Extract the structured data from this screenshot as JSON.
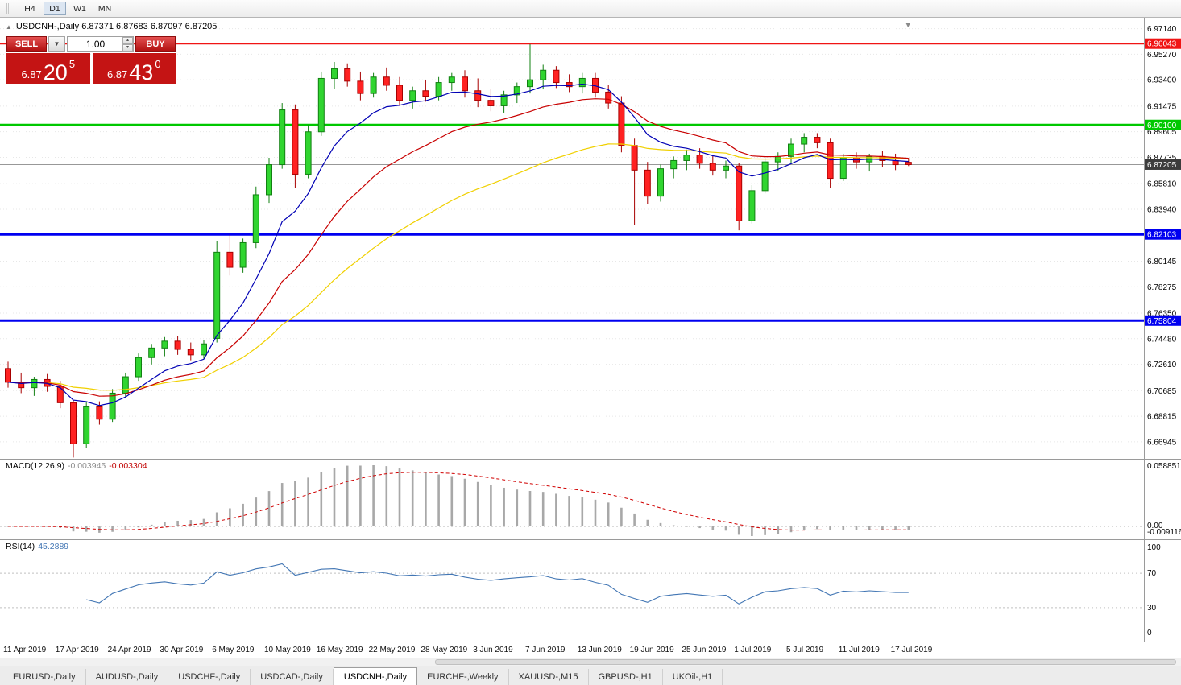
{
  "toolbar": {
    "timeframes": [
      {
        "label": "H4",
        "active": false
      },
      {
        "label": "D1",
        "active": true
      },
      {
        "label": "W1",
        "active": false
      },
      {
        "label": "MN",
        "active": false
      }
    ]
  },
  "chart": {
    "symbol": "USDCNH-",
    "period": "Daily",
    "title": "USDCNH-,Daily 6.87371 6.87683 6.87097 6.87205",
    "open": "6.87371",
    "high": "6.87683",
    "low": "6.87097",
    "close": "6.87205"
  },
  "icons": {
    "collapse": "▲",
    "autoscroll": "▼",
    "dropdown": "▼",
    "spin_up": "▴",
    "spin_down": "▾"
  },
  "trade_panel": {
    "sell_label": "SELL",
    "buy_label": "BUY",
    "volume": "1.00",
    "sell_price": {
      "prefix": "6.87",
      "big": "20",
      "sup": "5"
    },
    "buy_price": {
      "prefix": "6.87",
      "big": "43",
      "sup": "0"
    }
  },
  "price_axis": {
    "gridlines": [
      "6.97140",
      "6.95270",
      "6.93400",
      "6.91475",
      "6.89605",
      "6.87735",
      "6.85810",
      "6.83940",
      "6.80145",
      "6.78275",
      "6.76350",
      "6.74480",
      "6.72610",
      "6.70685",
      "6.68815",
      "6.66945"
    ],
    "current": {
      "price": 6.87205,
      "label": "6.87205"
    }
  },
  "macd": {
    "label": "MACD(12,26,9)",
    "main_value": "-0.003945",
    "signal_value": "-0.003304",
    "axis_max": "0.058851",
    "axis_zero": "0.00",
    "axis_min": "-0.009116",
    "fast": 12,
    "slow": 26,
    "smoothing": 9
  },
  "rsi": {
    "label": "RSI(14)",
    "value": "45.2889",
    "period": 14,
    "levels": [
      70,
      30
    ],
    "axis": [
      "100",
      "70",
      "30",
      "0"
    ]
  },
  "date_axis": {
    "step": 4
  },
  "tabs": [
    {
      "label": "EURUSD-,Daily",
      "active": false
    },
    {
      "label": "AUDUSD-,Daily",
      "active": false
    },
    {
      "label": "USDCHF-,Daily",
      "active": false
    },
    {
      "label": "USDCAD-,Daily",
      "active": false
    },
    {
      "label": "USDCNH-,Daily",
      "active": true
    },
    {
      "label": "EURCHF-,Weekly",
      "active": false
    },
    {
      "label": "XAUUSD-,M15",
      "active": false
    },
    {
      "label": "GBPUSD-,H1",
      "active": false
    },
    {
      "label": "UKOil-,H1",
      "active": false
    }
  ],
  "colors": {
    "bull": "#30d530",
    "bull_border": "#128012",
    "bear": "#ff2222",
    "bear_border": "#a80000",
    "ma_fast": "#0000b4",
    "ma_mid": "#c80000",
    "ma_slow": "#f0d000",
    "current_price_line": "#989898",
    "current_price_label_bg": "#3c3c3c",
    "macd_hist": "#a8a8a8",
    "macd_signal": "#d00000",
    "rsi_line": "#4276b4",
    "grid": "#e7e7e7",
    "separator": "#9a9a9a"
  },
  "chart_data": {
    "type": "candlestick",
    "symbol": "USDCNH-",
    "timeframe": "Daily",
    "hlines": [
      {
        "price": 6.96043,
        "label": "6.96043",
        "color": "#f01414",
        "width": 2
      },
      {
        "price": 6.901,
        "label": "6.90100",
        "color": "#00c800",
        "width": 3
      },
      {
        "price": 6.82103,
        "label": "6.82103",
        "color": "#0000f0",
        "width": 3
      },
      {
        "price": 6.75804,
        "label": "6.75804",
        "color": "#0000f0",
        "width": 3
      }
    ],
    "candles": [
      [
        "11 Apr 2019",
        6.723,
        6.728,
        6.709,
        6.713
      ],
      [
        "12 Apr 2019",
        6.713,
        6.72,
        6.705,
        6.709
      ],
      [
        "15 Apr 2019",
        6.709,
        6.717,
        6.703,
        6.715
      ],
      [
        "16 Apr 2019",
        6.715,
        6.719,
        6.706,
        6.71
      ],
      [
        "17 Apr 2019",
        6.71,
        6.714,
        6.694,
        6.698
      ],
      [
        "18 Apr 2019",
        6.698,
        6.7,
        6.658,
        6.668
      ],
      [
        "22 Apr 2019",
        6.668,
        6.699,
        6.665,
        6.695
      ],
      [
        "23 Apr 2019",
        6.695,
        6.699,
        6.682,
        6.686
      ],
      [
        "24 Apr 2019",
        6.686,
        6.708,
        6.684,
        6.705
      ],
      [
        "25 Apr 2019",
        6.705,
        6.72,
        6.702,
        6.717
      ],
      [
        "26 Apr 2019",
        6.717,
        6.734,
        6.714,
        6.731
      ],
      [
        "29 Apr 2019",
        6.731,
        6.741,
        6.726,
        6.738
      ],
      [
        "30 Apr 2019",
        6.738,
        6.746,
        6.732,
        6.743
      ],
      [
        "1 May 2019",
        6.743,
        6.747,
        6.733,
        6.737
      ],
      [
        "2 May 2019",
        6.737,
        6.742,
        6.729,
        6.733
      ],
      [
        "3 May 2019",
        6.733,
        6.744,
        6.73,
        6.741
      ],
      [
        "6 May 2019",
        6.745,
        6.816,
        6.742,
        6.808
      ],
      [
        "7 May 2019",
        6.808,
        6.821,
        6.791,
        6.797
      ],
      [
        "8 May 2019",
        6.797,
        6.818,
        6.793,
        6.815
      ],
      [
        "9 May 2019",
        6.815,
        6.856,
        6.811,
        6.85
      ],
      [
        "10 May 2019",
        6.85,
        6.877,
        6.844,
        6.872
      ],
      [
        "13 May 2019",
        6.872,
        6.917,
        6.869,
        6.912
      ],
      [
        "14 May 2019",
        6.912,
        6.916,
        6.855,
        6.865
      ],
      [
        "15 May 2019",
        6.865,
        6.901,
        6.862,
        6.896
      ],
      [
        "16 May 2019",
        6.896,
        6.94,
        6.893,
        6.935
      ],
      [
        "17 May 2019",
        6.935,
        6.947,
        6.927,
        6.942
      ],
      [
        "20 May 2019",
        6.942,
        6.946,
        6.929,
        6.933
      ],
      [
        "21 May 2019",
        6.933,
        6.94,
        6.919,
        6.924
      ],
      [
        "22 May 2019",
        6.924,
        6.939,
        6.921,
        6.936
      ],
      [
        "23 May 2019",
        6.936,
        6.943,
        6.926,
        6.93
      ],
      [
        "24 May 2019",
        6.93,
        6.936,
        6.915,
        6.919
      ],
      [
        "27 May 2019",
        6.919,
        6.929,
        6.913,
        6.926
      ],
      [
        "28 May 2019",
        6.926,
        6.934,
        6.918,
        6.922
      ],
      [
        "29 May 2019",
        6.922,
        6.936,
        6.919,
        6.932
      ],
      [
        "30 May 2019",
        6.932,
        6.939,
        6.926,
        6.936
      ],
      [
        "31 May 2019",
        6.936,
        6.941,
        6.921,
        6.926
      ],
      [
        "3 Jun 2019",
        6.926,
        6.935,
        6.914,
        6.919
      ],
      [
        "4 Jun 2019",
        6.919,
        6.927,
        6.911,
        6.915
      ],
      [
        "5 Jun 2019",
        6.915,
        6.926,
        6.91,
        6.923
      ],
      [
        "6 Jun 2019",
        6.923,
        6.932,
        6.917,
        6.929
      ],
      [
        "7 Jun 2019",
        6.929,
        6.96,
        6.924,
        6.934
      ],
      [
        "10 Jun 2019",
        6.934,
        6.945,
        6.927,
        6.941
      ],
      [
        "11 Jun 2019",
        6.941,
        6.944,
        6.928,
        6.932
      ],
      [
        "12 Jun 2019",
        6.932,
        6.938,
        6.925,
        6.929
      ],
      [
        "13 Jun 2019",
        6.929,
        6.939,
        6.924,
        6.935
      ],
      [
        "14 Jun 2019",
        6.935,
        6.939,
        6.921,
        6.925
      ],
      [
        "17 Jun 2019",
        6.925,
        6.93,
        6.913,
        6.917
      ],
      [
        "18 Jun 2019",
        6.917,
        6.922,
        6.881,
        6.886
      ],
      [
        "19 Jun 2019",
        6.886,
        6.891,
        6.828,
        6.868
      ],
      [
        "20 Jun 2019",
        6.868,
        6.874,
        6.843,
        6.849
      ],
      [
        "21 Jun 2019",
        6.849,
        6.872,
        6.845,
        6.869
      ],
      [
        "24 Jun 2019",
        6.869,
        6.878,
        6.862,
        6.875
      ],
      [
        "25 Jun 2019",
        6.875,
        6.883,
        6.868,
        6.879
      ],
      [
        "26 Jun 2019",
        6.879,
        6.884,
        6.869,
        6.873
      ],
      [
        "27 Jun 2019",
        6.873,
        6.879,
        6.864,
        6.868
      ],
      [
        "28 Jun 2019",
        6.868,
        6.875,
        6.862,
        6.871
      ],
      [
        "1 Jul 2019",
        6.871,
        6.873,
        6.824,
        6.831
      ],
      [
        "2 Jul 2019",
        6.831,
        6.857,
        6.829,
        6.853
      ],
      [
        "3 Jul 2019",
        6.853,
        6.877,
        6.851,
        6.874
      ],
      [
        "4 Jul 2019",
        6.874,
        6.881,
        6.867,
        6.878
      ],
      [
        "5 Jul 2019",
        6.878,
        6.891,
        6.873,
        6.887
      ],
      [
        "8 Jul 2019",
        6.887,
        6.895,
        6.881,
        6.892
      ],
      [
        "9 Jul 2019",
        6.892,
        6.895,
        6.884,
        6.888
      ],
      [
        "10 Jul 2019",
        6.888,
        6.891,
        6.855,
        6.862
      ],
      [
        "11 Jul 2019",
        6.862,
        6.88,
        6.86,
        6.877
      ],
      [
        "12 Jul 2019",
        6.877,
        6.881,
        6.869,
        6.874
      ],
      [
        "15 Jul 2019",
        6.874,
        6.88,
        6.867,
        6.878
      ],
      [
        "16 Jul 2019",
        6.878,
        6.882,
        6.87,
        6.875
      ],
      [
        "17 Jul 2019",
        6.875,
        6.88,
        6.868,
        6.872
      ],
      [
        "18 Jul 2019",
        6.87371,
        6.87683,
        6.87097,
        6.87205
      ]
    ],
    "moving_averages": [
      {
        "name": "fast",
        "period": 8
      },
      {
        "name": "mid",
        "period": 17
      },
      {
        "name": "slow",
        "period": 34
      }
    ]
  }
}
